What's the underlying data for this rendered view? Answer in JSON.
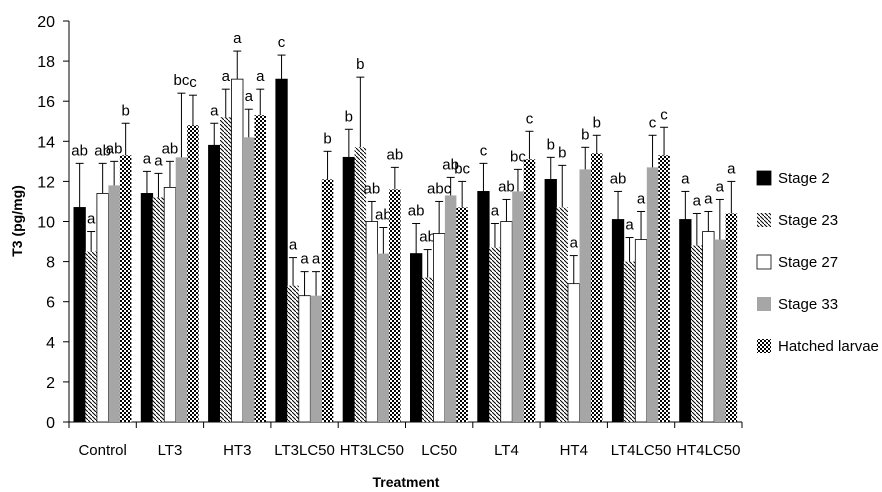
{
  "chart_data": {
    "type": "bar",
    "xlabel": "Treatment",
    "ylabel": "T3 (pg/mg)",
    "ylim": [
      0,
      20
    ],
    "yticks": [
      0,
      2,
      4,
      6,
      8,
      10,
      12,
      14,
      16,
      18,
      20
    ],
    "grid": false,
    "legend_position": "right",
    "error_bars": true,
    "categories": [
      "Control",
      "LT3",
      "HT3",
      "LT3LC50",
      "HT3LC50",
      "LC50",
      "LT4",
      "HT4",
      "LT4LC50",
      "HT4LC50"
    ],
    "series": [
      {
        "name": "Stage 2",
        "pattern": "solid-black",
        "values": [
          10.7,
          11.4,
          13.8,
          17.1,
          13.2,
          8.4,
          11.5,
          12.1,
          10.1,
          10.1
        ],
        "errors": [
          2.2,
          1.1,
          1.1,
          1.2,
          1.4,
          1.5,
          1.4,
          1.1,
          1.4,
          1.4
        ],
        "labels": [
          "ab",
          "a",
          "a",
          "c",
          "b",
          "ab",
          "c",
          "b",
          "ab",
          "a"
        ]
      },
      {
        "name": "Stage 23",
        "pattern": "diagonal-hatch",
        "values": [
          8.5,
          11.2,
          15.2,
          6.8,
          13.7,
          7.2,
          8.7,
          10.7,
          8.0,
          8.8
        ],
        "errors": [
          1.0,
          1.2,
          1.4,
          1.4,
          3.5,
          1.4,
          1.2,
          2.1,
          1.2,
          1.6
        ],
        "labels": [
          "a",
          "a",
          "a",
          "a",
          "b",
          "ab",
          "a",
          "b",
          "a",
          "a"
        ]
      },
      {
        "name": "Stage 27",
        "pattern": "white",
        "values": [
          11.4,
          11.7,
          17.1,
          6.3,
          10.0,
          9.4,
          10.0,
          6.9,
          9.1,
          9.5
        ],
        "errors": [
          1.5,
          1.3,
          1.4,
          1.2,
          1.0,
          1.6,
          1.1,
          1.4,
          1.4,
          1.0
        ],
        "labels": [
          "ab",
          "ab",
          "a",
          "a",
          "ab",
          "abc",
          "ab",
          "a",
          "a",
          "a"
        ]
      },
      {
        "name": "Stage 33",
        "pattern": "solid-gray",
        "values": [
          11.8,
          13.2,
          14.2,
          6.3,
          8.4,
          11.3,
          11.5,
          12.6,
          12.7,
          9.1
        ],
        "errors": [
          1.2,
          3.2,
          1.4,
          1.2,
          1.3,
          0.9,
          1.1,
          1.1,
          1.6,
          2.0
        ],
        "labels": [
          "ab",
          "bc",
          "a",
          "a",
          "ab",
          "ab",
          "bc",
          "b",
          "c",
          "a"
        ]
      },
      {
        "name": "Hatched larvae",
        "pattern": "dotted",
        "values": [
          13.3,
          14.8,
          15.3,
          12.1,
          11.6,
          10.7,
          13.1,
          13.4,
          13.3,
          10.4
        ],
        "errors": [
          1.6,
          1.5,
          1.3,
          1.4,
          1.1,
          1.3,
          1.4,
          0.9,
          1.4,
          1.6
        ],
        "labels": [
          "b",
          "c",
          "a",
          "b",
          "ab",
          "bc",
          "c",
          "b",
          "c",
          "a"
        ]
      }
    ]
  }
}
